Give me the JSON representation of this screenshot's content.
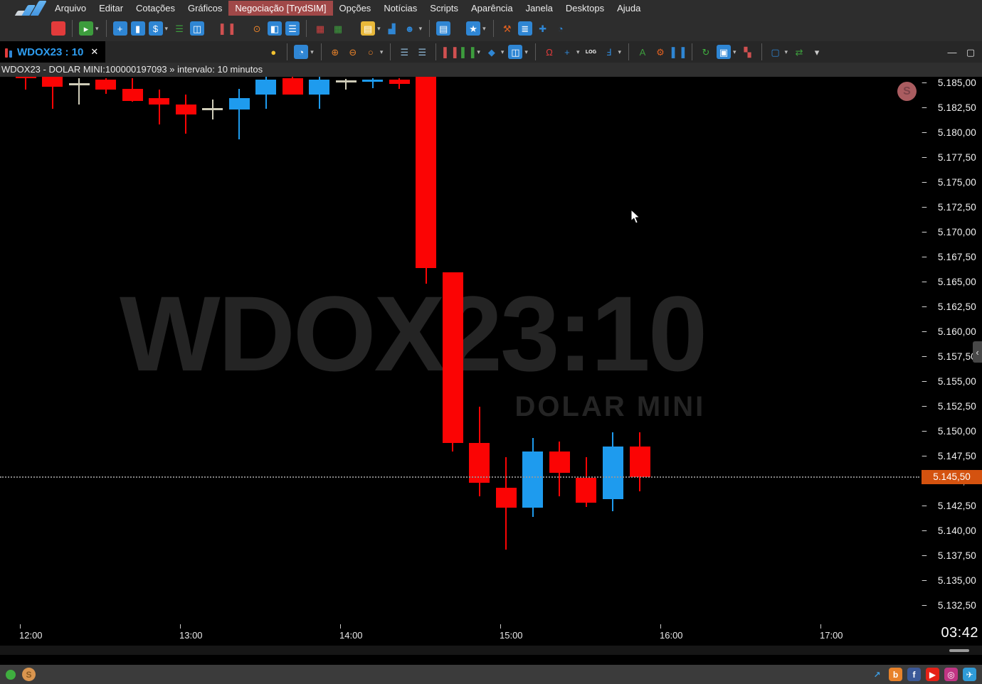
{
  "menubar": {
    "items": [
      {
        "label": "Arquivo"
      },
      {
        "label": "Editar"
      },
      {
        "label": "Cotações"
      },
      {
        "label": "Gráficos"
      },
      {
        "label": "Negociação [TrydSIM]",
        "active": true
      },
      {
        "label": "Opções"
      },
      {
        "label": "Notícias"
      },
      {
        "label": "Scripts"
      },
      {
        "label": "Aparência"
      },
      {
        "label": "Janela"
      },
      {
        "label": "Desktops"
      },
      {
        "label": "Ajuda"
      }
    ]
  },
  "toolbar_main": {
    "items": [
      {
        "name": "pause-icon",
        "glyph": "",
        "bg": "#e23b3b"
      },
      {
        "sep": true
      },
      {
        "name": "replay-icon",
        "glyph": "▸",
        "bg": "#3d9c3d",
        "caret": true
      },
      {
        "sep": true
      },
      {
        "name": "new-board-icon",
        "glyph": "+",
        "bg": "#2f86d4"
      },
      {
        "name": "order-book-icon",
        "glyph": "▮",
        "bg": "#2f86d4"
      },
      {
        "name": "times-trades-icon",
        "glyph": "$",
        "bg": "#2f86d4",
        "caret": true
      },
      {
        "name": "ranking-icon",
        "glyph": "☰",
        "fg": "#3d9c3d"
      },
      {
        "name": "split-panel-icon",
        "glyph": "◫",
        "bg": "#2f86d4"
      },
      {
        "gap": true
      },
      {
        "name": "chart-candles-icon",
        "glyph": "▌▐",
        "fg": "#d05050"
      },
      {
        "gap": true
      },
      {
        "name": "search-quotes-icon",
        "glyph": "⊙",
        "fg": "#e8822a"
      },
      {
        "name": "quote-board-icon",
        "glyph": "◧",
        "bg": "#2f86d4"
      },
      {
        "name": "quote-list-icon",
        "glyph": "☰",
        "bg": "#2f86d4"
      },
      {
        "sep": true
      },
      {
        "name": "grid-red-icon",
        "glyph": "▦",
        "fg": "#d04040"
      },
      {
        "name": "grid-green-icon",
        "glyph": "▦",
        "fg": "#3d9c3d"
      },
      {
        "gap": true
      },
      {
        "name": "folder-icon",
        "glyph": "▤",
        "bg": "#e8b83a",
        "caret": true
      },
      {
        "name": "volume-bars-icon",
        "glyph": "▟",
        "fg": "#2f86d4"
      },
      {
        "name": "user-icon",
        "glyph": "☻",
        "fg": "#2f86d4",
        "caret": true
      },
      {
        "sep": true
      },
      {
        "name": "news-board-icon",
        "glyph": "▤",
        "bg": "#2f86d4"
      },
      {
        "gap": true
      },
      {
        "name": "favorites-db-icon",
        "glyph": "★",
        "bg": "#2f86d4",
        "caret": true
      },
      {
        "sep": true
      },
      {
        "name": "auction-hammer-icon",
        "glyph": "⚒",
        "fg": "#e06020"
      },
      {
        "name": "database-icon",
        "glyph": "≣",
        "bg": "#2f86d4"
      },
      {
        "name": "plugins-icon",
        "glyph": "✚",
        "fg": "#2f86d4"
      },
      {
        "name": "world-clock-icon",
        "glyph": "◔",
        "fg": "#2f86d4"
      }
    ]
  },
  "chart_tab": {
    "label": "WDOX23 : 10",
    "close_glyph": "✕"
  },
  "chart_toolbar": {
    "items": [
      {
        "name": "tip-bulb-icon",
        "glyph": "●",
        "fg": "#f2c230"
      },
      {
        "sep": true
      },
      {
        "name": "interval-clock-icon",
        "glyph": "◔",
        "bg": "#2f86d4",
        "caret": true
      },
      {
        "sep": true
      },
      {
        "name": "zoom-in-icon",
        "glyph": "⊕",
        "fg": "#e8822a"
      },
      {
        "name": "zoom-out-icon",
        "glyph": "⊖",
        "fg": "#e8822a"
      },
      {
        "name": "zoom-reset-icon",
        "glyph": "○",
        "fg": "#e8822a",
        "caret": true
      },
      {
        "sep": true
      },
      {
        "name": "indicator-add-icon",
        "glyph": "☰",
        "fg": "#8fb8d8"
      },
      {
        "name": "indicator-remove-icon",
        "glyph": "☰",
        "fg": "#8fb8d8"
      },
      {
        "sep": true
      },
      {
        "name": "candle-type-icon",
        "glyph": "▌▐",
        "fg": "#d05050"
      },
      {
        "name": "candle-compare-icon",
        "glyph": "▌▐",
        "fg": "#3d9c3d",
        "caret": true
      },
      {
        "name": "shapes-icon",
        "glyph": "◆",
        "fg": "#2f86d4",
        "caret": true
      },
      {
        "name": "layout-icon",
        "glyph": "◫",
        "bg": "#2f86d4",
        "caret": true
      },
      {
        "sep": true
      },
      {
        "name": "magnet-icon",
        "glyph": "Ω",
        "fg": "#e23b3b"
      },
      {
        "name": "crosshair-icon",
        "glyph": "+",
        "fg": "#2f86d4",
        "caret": true
      },
      {
        "name": "log-scale-icon",
        "glyph": "LOG",
        "fg": "#ffffff",
        "small": true
      },
      {
        "name": "wrench-icon",
        "glyph": "Ⅎ",
        "fg": "#2f86d4",
        "caret": true
      },
      {
        "sep": true
      },
      {
        "name": "annotate-text-icon",
        "glyph": "A",
        "fg": "#3d9c3d"
      },
      {
        "name": "gear-icon",
        "glyph": "⚙",
        "fg": "#e06020"
      },
      {
        "name": "mini-chart-icon",
        "glyph": "▌▐",
        "fg": "#2f86d4"
      },
      {
        "sep": true
      },
      {
        "name": "refresh-icon",
        "glyph": "↻",
        "fg": "#3fae3f"
      },
      {
        "name": "export-image-icon",
        "glyph": "▣",
        "bg": "#2f86d4",
        "caret": true
      },
      {
        "name": "colors-icon",
        "glyph": "▚",
        "fg": "#d05050"
      },
      {
        "sep": true
      },
      {
        "name": "select-region-icon",
        "glyph": "▢",
        "fg": "#2f86d4",
        "caret": true
      },
      {
        "name": "compress-icon",
        "glyph": "⇄",
        "fg": "#3d9c3d"
      },
      {
        "name": "overflow-caret-icon",
        "glyph": "▾",
        "fg": "#cccccc"
      }
    ]
  },
  "window_controls": {
    "minimize": "—",
    "maximize": "▢"
  },
  "titlebar": {
    "text": "WDOX23 - DOLAR MINI:100000197093 » intervalo: 10 minutos"
  },
  "watermark": {
    "symbol": "WDOX23:10",
    "name": "DOLAR MINI"
  },
  "sim_badge": {
    "label": "S"
  },
  "panel_chevron": {
    "glyph": "‹"
  },
  "clock": {
    "time": "03:42"
  },
  "chart_data": {
    "type": "candlestick",
    "symbol": "WDOX23",
    "instrument": "DOLAR MINI",
    "interval": "10 minutos",
    "price_axis": {
      "max": 5185.0,
      "min": 5132.5,
      "step": 2.5,
      "labels": [
        "5.185,00",
        "5.182,50",
        "5.180,00",
        "5.177,50",
        "5.175,00",
        "5.172,50",
        "5.170,00",
        "5.167,50",
        "5.165,00",
        "5.162,50",
        "5.160,00",
        "5.157,50",
        "5.155,00",
        "5.152,50",
        "5.150,00",
        "5.147,50",
        "5.145,00",
        "5.142,50",
        "5.140,00",
        "5.137,50",
        "5.135,00",
        "5.132,50"
      ]
    },
    "time_axis": {
      "labels": [
        "12:00",
        "13:00",
        "14:00",
        "15:00",
        "16:00",
        "17:00"
      ]
    },
    "last_price": {
      "value": 5145.5,
      "label": "5.145,50",
      "badge_color": "#d4520f"
    },
    "colors": {
      "up": "#1e9bee",
      "down": "#fb0404",
      "doji": "#cfccb8"
    },
    "candles": [
      {
        "time": "12:00",
        "open": 5186.2,
        "high": 5186.4,
        "low": 5184.4,
        "close": 5185.6
      },
      {
        "time": "12:10",
        "open": 5186.3,
        "high": 5186.3,
        "low": 5182.5,
        "close": 5184.7
      },
      {
        "time": "12:20",
        "open": 5185.0,
        "high": 5185.6,
        "low": 5182.9,
        "close": 5184.9,
        "doji": true
      },
      {
        "time": "12:30",
        "open": 5185.4,
        "high": 5185.6,
        "low": 5184.0,
        "close": 5184.4
      },
      {
        "time": "12:40",
        "open": 5184.5,
        "high": 5185.6,
        "low": 5183.2,
        "close": 5183.3
      },
      {
        "time": "12:50",
        "open": 5183.6,
        "high": 5184.4,
        "low": 5180.9,
        "close": 5182.9
      },
      {
        "time": "13:00",
        "open": 5182.9,
        "high": 5183.9,
        "low": 5180.0,
        "close": 5181.9
      },
      {
        "time": "13:10",
        "open": 5182.5,
        "high": 5183.4,
        "low": 5181.4,
        "close": 5182.4,
        "doji": true
      },
      {
        "time": "13:20",
        "open": 5182.4,
        "high": 5184.5,
        "low": 5179.4,
        "close": 5183.6
      },
      {
        "time": "13:30",
        "open": 5183.9,
        "high": 5185.8,
        "low": 5182.5,
        "close": 5185.4
      },
      {
        "time": "13:40",
        "open": 5185.6,
        "high": 5185.7,
        "low": 5183.9,
        "close": 5183.9
      },
      {
        "time": "13:50",
        "open": 5183.9,
        "high": 5185.8,
        "low": 5182.5,
        "close": 5185.4
      },
      {
        "time": "14:00",
        "open": 5185.3,
        "high": 5185.5,
        "low": 5184.4,
        "close": 5185.2,
        "doji": true
      },
      {
        "time": "14:10",
        "open": 5185.2,
        "high": 5185.6,
        "low": 5184.6,
        "close": 5185.4
      },
      {
        "time": "14:20",
        "open": 5185.4,
        "high": 5185.6,
        "low": 5184.5,
        "close": 5185.0
      },
      {
        "time": "14:30",
        "open": 5186.0,
        "high": 5186.0,
        "low": 5164.9,
        "close": 5166.5
      },
      {
        "time": "14:40",
        "open": 5166.1,
        "high": 5166.1,
        "low": 5148.1,
        "close": 5148.9
      },
      {
        "time": "14:50",
        "open": 5148.9,
        "high": 5152.6,
        "low": 5143.6,
        "close": 5144.9
      },
      {
        "time": "15:00",
        "open": 5144.4,
        "high": 5147.5,
        "low": 5138.2,
        "close": 5142.4
      },
      {
        "time": "15:10",
        "open": 5142.4,
        "high": 5149.4,
        "low": 5141.5,
        "close": 5148.1
      },
      {
        "time": "15:20",
        "open": 5148.1,
        "high": 5149.1,
        "low": 5143.6,
        "close": 5145.9
      },
      {
        "time": "15:30",
        "open": 5145.4,
        "high": 5147.5,
        "low": 5142.5,
        "close": 5142.9
      },
      {
        "time": "15:40",
        "open": 5143.3,
        "high": 5150.0,
        "low": 5142.1,
        "close": 5148.6
      },
      {
        "time": "15:50",
        "open": 5148.6,
        "high": 5150.0,
        "low": 5144.1,
        "close": 5145.5
      }
    ]
  },
  "statusbar": {
    "social": [
      {
        "name": "tryd-link-icon",
        "glyph": "↗",
        "fg": "#3d9ce0"
      },
      {
        "name": "blog-icon",
        "glyph": "b",
        "bg": "#e8822a"
      },
      {
        "name": "facebook-icon",
        "glyph": "f",
        "bg": "#3b5998"
      },
      {
        "name": "youtube-icon",
        "glyph": "▶",
        "bg": "#e62117"
      },
      {
        "name": "instagram-icon",
        "glyph": "◎",
        "bg": "#c13584"
      },
      {
        "name": "telegram-icon",
        "glyph": "✈",
        "bg": "#2f9bd8"
      }
    ]
  }
}
